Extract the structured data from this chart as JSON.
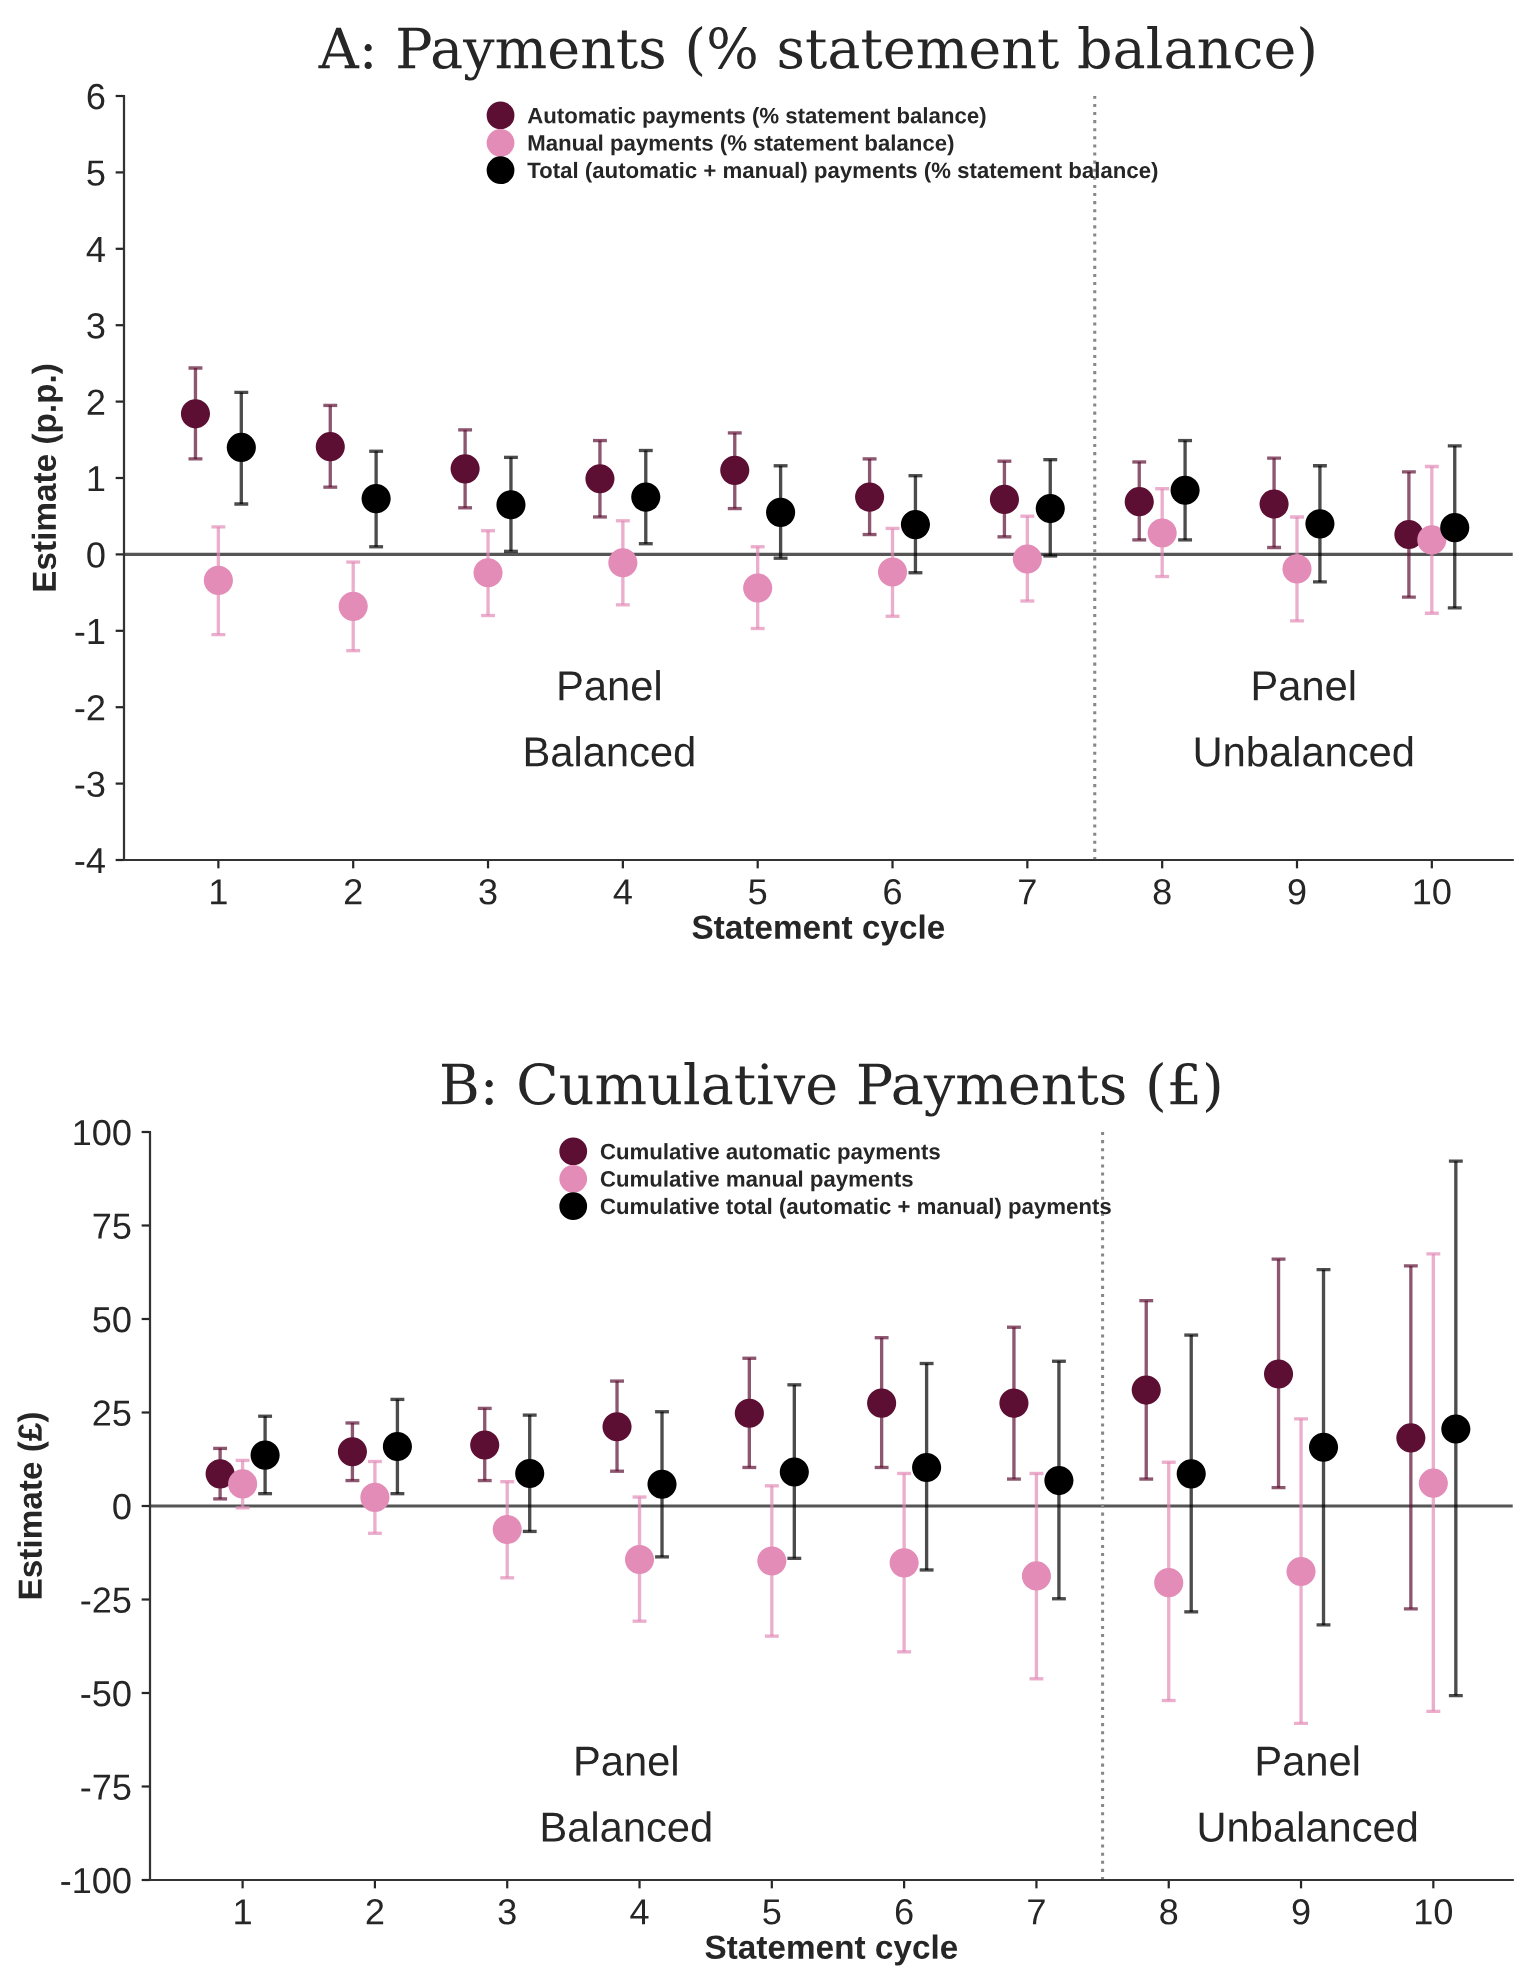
{
  "chart_data": [
    {
      "type": "scatter",
      "title": "A: Payments (% statement balance)",
      "xlabel": "Statement cycle",
      "ylabel": "Estimate (p.p.)",
      "x": [
        1,
        2,
        3,
        4,
        5,
        6,
        7,
        8,
        9,
        10
      ],
      "xlim": [
        0.3,
        10.6
      ],
      "xticks": [
        1,
        2,
        3,
        4,
        5,
        6,
        7,
        8,
        9,
        10
      ],
      "ylim": [
        -4,
        6
      ],
      "yticks": [
        -4,
        -3,
        -2,
        -1,
        0,
        1,
        2,
        3,
        4,
        5,
        6
      ],
      "grid": false,
      "legend": "top",
      "marker": "circle",
      "series": [
        {
          "name": "Automatic payments (% statement balance)",
          "color": "#5c0f33",
          "x": [
            0.83,
            1.83,
            2.83,
            3.83,
            4.83,
            5.83,
            6.83,
            7.83,
            8.83,
            9.83
          ],
          "values": [
            1.84,
            1.41,
            1.12,
            0.99,
            1.1,
            0.75,
            0.72,
            0.69,
            0.66,
            0.26
          ],
          "errors": [
            [
              1.25,
              2.44
            ],
            [
              0.88,
              1.95
            ],
            [
              0.61,
              1.63
            ],
            [
              0.49,
              1.49
            ],
            [
              0.6,
              1.59
            ],
            [
              0.26,
              1.25
            ],
            [
              0.23,
              1.22
            ],
            [
              0.19,
              1.21
            ],
            [
              0.09,
              1.26
            ],
            [
              -0.56,
              1.08
            ]
          ]
        },
        {
          "name": "Manual payments (% statement balance)",
          "color": "#e38cb7",
          "values": [
            -0.34,
            -0.68,
            -0.24,
            -0.11,
            -0.44,
            -0.23,
            -0.06,
            0.28,
            -0.19,
            0.19
          ],
          "errors": [
            [
              -1.05,
              0.36
            ],
            [
              -1.26,
              -0.1
            ],
            [
              -0.8,
              0.31
            ],
            [
              -0.66,
              0.44
            ],
            [
              -0.97,
              0.1
            ],
            [
              -0.81,
              0.34
            ],
            [
              -0.61,
              0.5
            ],
            [
              -0.29,
              0.86
            ],
            [
              -0.87,
              0.49
            ],
            [
              -0.77,
              1.15
            ]
          ]
        },
        {
          "name": "Total (automatic + manual) payments (% statement balance)",
          "color": "#000000",
          "x": [
            1.17,
            2.17,
            3.17,
            4.17,
            5.17,
            6.17,
            7.17,
            8.17,
            9.17,
            10.17
          ],
          "values": [
            1.4,
            0.73,
            0.65,
            0.75,
            0.55,
            0.39,
            0.6,
            0.84,
            0.4,
            0.35
          ],
          "errors": [
            [
              0.66,
              2.12
            ],
            [
              0.1,
              1.35
            ],
            [
              0.04,
              1.27
            ],
            [
              0.14,
              1.36
            ],
            [
              -0.05,
              1.16
            ],
            [
              -0.24,
              1.03
            ],
            [
              -0.02,
              1.24
            ],
            [
              0.19,
              1.49
            ],
            [
              -0.36,
              1.16
            ],
            [
              -0.7,
              1.42
            ]
          ]
        }
      ],
      "ref_lines": [
        {
          "axis": "y",
          "value": 0,
          "color": "#555555",
          "line_style": "solid"
        },
        {
          "axis": "x",
          "value": 7.5,
          "color": "#888888",
          "line_style": "dotted"
        }
      ],
      "annotations": [
        "Panel\nBalanced",
        "Panel\nUnbalanced"
      ]
    },
    {
      "type": "scatter",
      "title": "B: Cumulative Payments (£)",
      "xlabel": "Statement cycle",
      "ylabel": "Estimate (£)",
      "x": [
        1,
        2,
        3,
        4,
        5,
        6,
        7,
        8,
        9,
        10
      ],
      "xlim": [
        0.3,
        10.6
      ],
      "xticks": [
        1,
        2,
        3,
        4,
        5,
        6,
        7,
        8,
        9,
        10
      ],
      "ylim": [
        -100,
        100
      ],
      "yticks": [
        -100,
        -75,
        -50,
        -25,
        0,
        25,
        50,
        75,
        100
      ],
      "grid": false,
      "legend": "top",
      "marker": "circle",
      "series": [
        {
          "name": "Cumulative automatic payments",
          "color": "#5c0f33",
          "x": [
            0.83,
            1.83,
            2.83,
            3.83,
            4.83,
            5.83,
            6.83,
            7.83,
            8.83,
            9.83
          ],
          "values": [
            8.6,
            14.5,
            16.3,
            21.2,
            24.8,
            27.5,
            27.5,
            31.0,
            35.3,
            18.2
          ],
          "errors": [
            [
              1.9,
              15.4
            ],
            [
              6.8,
              22.2
            ],
            [
              6.8,
              26.1
            ],
            [
              9.3,
              33.4
            ],
            [
              10.3,
              39.5
            ],
            [
              10.3,
              45.0
            ],
            [
              7.2,
              47.8
            ],
            [
              7.2,
              54.9
            ],
            [
              4.9,
              66.0
            ],
            [
              -27.5,
              64.2
            ]
          ]
        },
        {
          "name": "Cumulative manual payments",
          "color": "#e38cb7",
          "values": [
            5.9,
            2.3,
            -6.3,
            -14.3,
            -14.7,
            -15.2,
            -18.7,
            -20.5,
            -17.5,
            6.1
          ],
          "errors": [
            [
              -0.5,
              12.2
            ],
            [
              -7.3,
              11.9
            ],
            [
              -19.2,
              6.5
            ],
            [
              -30.8,
              2.4
            ],
            [
              -34.8,
              5.4
            ],
            [
              -39.0,
              8.7
            ],
            [
              -46.2,
              8.7
            ],
            [
              -52.0,
              11.7
            ],
            [
              -58.1,
              23.3
            ],
            [
              -54.9,
              67.4
            ]
          ]
        },
        {
          "name": "Cumulative total (automatic + manual) payments",
          "color": "#000000",
          "x": [
            1.17,
            2.17,
            3.17,
            4.17,
            5.17,
            6.17,
            7.17,
            8.17,
            9.17,
            10.17
          ],
          "values": [
            13.6,
            15.9,
            8.7,
            5.8,
            9.1,
            10.3,
            6.8,
            8.6,
            15.7,
            20.6
          ],
          "errors": [
            [
              3.3,
              24.0
            ],
            [
              3.3,
              28.5
            ],
            [
              -6.8,
              24.3
            ],
            [
              -13.6,
              25.2
            ],
            [
              -14.0,
              32.4
            ],
            [
              -17.1,
              38.1
            ],
            [
              -24.8,
              38.7
            ],
            [
              -28.3,
              45.7
            ],
            [
              -31.8,
              63.2
            ],
            [
              -50.7,
              92.2
            ]
          ]
        }
      ],
      "ref_lines": [
        {
          "axis": "y",
          "value": 0,
          "color": "#555555",
          "line_style": "solid"
        },
        {
          "axis": "x",
          "value": 7.5,
          "color": "#888888",
          "line_style": "dotted"
        }
      ],
      "annotations": [
        "Panel\nBalanced",
        "Panel\nUnbalanced"
      ]
    }
  ]
}
